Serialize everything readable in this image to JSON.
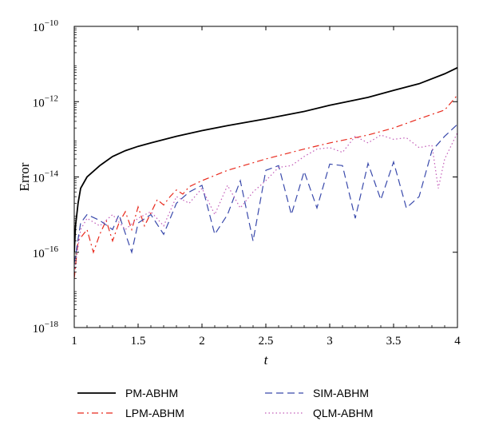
{
  "chart_data": {
    "type": "line",
    "xlabel": "t",
    "ylabel": "Error",
    "xlim": [
      1,
      4
    ],
    "ylim": [
      1e-18,
      1e-10
    ],
    "yscale": "log",
    "xticks": [
      "1",
      "1.5",
      "2",
      "2.5",
      "3",
      "3.5",
      "4"
    ],
    "yticks": [
      {
        "base": "10",
        "exp": "−10"
      },
      {
        "base": "10",
        "exp": "−12"
      },
      {
        "base": "10",
        "exp": "−14"
      },
      {
        "base": "10",
        "exp": "−16"
      },
      {
        "base": "10",
        "exp": "−18"
      }
    ],
    "grid": false,
    "legend_position": "bottom",
    "series": [
      {
        "name": "PM-ABHM",
        "color": "#000000",
        "style": "solid",
        "x": [
          1.0,
          1.01,
          1.03,
          1.05,
          1.1,
          1.2,
          1.3,
          1.4,
          1.5,
          1.6,
          1.8,
          2.0,
          2.2,
          2.5,
          2.8,
          3.0,
          3.3,
          3.5,
          3.7,
          3.9,
          4.0
        ],
        "y": [
          1e-16,
          5e-16,
          2e-15,
          5e-15,
          1e-14,
          2e-14,
          3.5e-14,
          5e-14,
          6.5e-14,
          8e-14,
          1.2e-13,
          1.7e-13,
          2.3e-13,
          3.5e-13,
          5.5e-13,
          8e-13,
          1.3e-12,
          2e-12,
          3e-12,
          5.5e-12,
          8e-12
        ]
      },
      {
        "name": "LPM-ABHM",
        "color": "#e8291c",
        "style": "dashdot",
        "x": [
          1.0,
          1.03,
          1.1,
          1.15,
          1.2,
          1.25,
          1.3,
          1.35,
          1.4,
          1.45,
          1.5,
          1.55,
          1.6,
          1.65,
          1.7,
          1.75,
          1.8,
          1.85,
          1.9,
          2.0,
          2.2,
          2.5,
          2.8,
          3.0,
          3.3,
          3.5,
          3.7,
          3.9,
          4.0
        ],
        "y": [
          2e-17,
          2e-16,
          4e-16,
          1e-16,
          3e-16,
          7e-16,
          2e-16,
          6e-16,
          1.2e-15,
          4e-16,
          1.6e-15,
          5e-16,
          1.1e-15,
          2.5e-15,
          1.8e-15,
          3e-15,
          4.5e-15,
          3.5e-15,
          5.5e-15,
          8e-15,
          1.5e-14,
          3e-14,
          5.5e-14,
          8e-14,
          1.3e-13,
          2e-13,
          3.5e-13,
          6e-13,
          1.5e-12
        ]
      },
      {
        "name": "SIM-ABHM",
        "color": "#3949ab",
        "style": "dashed",
        "x": [
          1.0,
          1.05,
          1.1,
          1.2,
          1.3,
          1.35,
          1.45,
          1.5,
          1.6,
          1.7,
          1.8,
          1.9,
          2.0,
          2.1,
          2.2,
          2.3,
          2.4,
          2.5,
          2.6,
          2.7,
          2.8,
          2.9,
          3.0,
          3.1,
          3.2,
          3.3,
          3.4,
          3.5,
          3.6,
          3.7,
          3.8,
          3.9,
          4.0
        ],
        "y": [
          5e-17,
          6e-16,
          1e-15,
          7e-16,
          4e-16,
          1e-15,
          1e-16,
          6e-16,
          1e-15,
          3e-16,
          2e-15,
          4e-15,
          6e-15,
          3e-16,
          1e-15,
          8e-15,
          2e-16,
          1.5e-14,
          2e-14,
          1e-15,
          1.4e-14,
          1.5e-15,
          2.2e-14,
          2e-14,
          8e-16,
          2.3e-14,
          2.5e-15,
          2.5e-14,
          1.5e-15,
          3e-15,
          5e-14,
          1.2e-13,
          2.5e-13
        ]
      },
      {
        "name": "QLM-ABHM",
        "color": "#c25bb8",
        "style": "dotted",
        "x": [
          1.0,
          1.05,
          1.1,
          1.2,
          1.3,
          1.4,
          1.5,
          1.6,
          1.7,
          1.8,
          1.9,
          2.0,
          2.1,
          2.2,
          2.3,
          2.4,
          2.5,
          2.6,
          2.7,
          2.8,
          2.9,
          3.0,
          3.1,
          3.2,
          3.3,
          3.4,
          3.5,
          3.6,
          3.7,
          3.8,
          3.85,
          3.9,
          4.0
        ],
        "y": [
          3e-17,
          4e-16,
          8e-16,
          5e-16,
          1e-15,
          4e-16,
          8e-16,
          1.2e-15,
          5e-16,
          3e-15,
          2e-15,
          5e-15,
          1e-15,
          6e-15,
          1.5e-15,
          4e-15,
          8e-15,
          1.8e-14,
          2e-14,
          3.5e-14,
          5.5e-14,
          6e-14,
          4.5e-14,
          1.2e-13,
          8e-14,
          1.3e-13,
          1e-13,
          1.1e-13,
          6e-14,
          7e-14,
          5e-15,
          3e-14,
          1.5e-13
        ]
      }
    ]
  }
}
